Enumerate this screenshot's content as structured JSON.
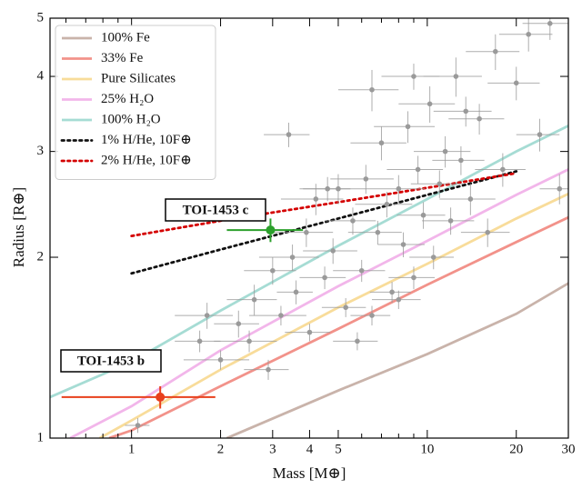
{
  "chart_data": {
    "type": "scatter",
    "xlabel": "Mass [M⊕]",
    "ylabel": "Radius [R⊕]",
    "xscale": "log",
    "yscale": "log",
    "xlim": [
      0.53,
      30
    ],
    "ylim": [
      1,
      5
    ],
    "xticks": [
      1,
      2,
      3,
      4,
      5,
      10,
      20,
      30
    ],
    "xminorticks": [
      0.6,
      0.7,
      0.8,
      0.9,
      6,
      7,
      8,
      9
    ],
    "yticks": [
      1,
      2,
      3,
      4,
      5
    ],
    "legend": "upper left",
    "series": [
      {
        "name": "100% Fe",
        "color": "#c9b3aa",
        "style": "solid",
        "x": [
          2.1,
          5,
          10,
          20,
          30
        ],
        "values": [
          1.0,
          1.2,
          1.38,
          1.61,
          1.81
        ]
      },
      {
        "name": "33% Fe",
        "color": "#f2928a",
        "style": "solid",
        "x": [
          0.84,
          1,
          2,
          5,
          10,
          20,
          30
        ],
        "values": [
          1.0,
          1.03,
          1.22,
          1.52,
          1.8,
          2.12,
          2.33
        ]
      },
      {
        "name": "Pure Silicates",
        "color": "#f8dc9a",
        "style": "solid",
        "x": [
          0.78,
          1,
          2,
          5,
          10,
          20,
          30
        ],
        "values": [
          1.0,
          1.07,
          1.3,
          1.65,
          1.95,
          2.32,
          2.55
        ]
      },
      {
        "name": "25% H₂O",
        "color": "#f2b6ea",
        "style": "solid",
        "x": [
          0.62,
          1,
          2,
          5,
          10,
          20,
          30
        ],
        "values": [
          1.0,
          1.13,
          1.4,
          1.79,
          2.13,
          2.54,
          2.8
        ]
      },
      {
        "name": "100% H₂O",
        "color": "#a6dcd4",
        "style": "solid",
        "x": [
          0.53,
          1,
          2,
          5,
          10,
          20,
          30
        ],
        "values": [
          1.17,
          1.34,
          1.63,
          2.09,
          2.5,
          3.0,
          3.31
        ]
      },
      {
        "name": "1% H/He, 10F⊕",
        "color": "#111111",
        "style": "dotted",
        "x": [
          1,
          2,
          5,
          10,
          20
        ],
        "values": [
          1.88,
          2.06,
          2.32,
          2.54,
          2.78
        ]
      },
      {
        "name": "2% H/He, 10F⊕",
        "color": "#d40000",
        "style": "dotted",
        "x": [
          1,
          2,
          5,
          10,
          20
        ],
        "values": [
          2.17,
          2.3,
          2.47,
          2.61,
          2.76
        ]
      }
    ],
    "points": {
      "color": "#9a9a9a",
      "x": [
        1.05,
        1.7,
        1.8,
        2.0,
        2.3,
        2.5,
        2.6,
        2.9,
        3.0,
        3.2,
        3.5,
        3.6,
        3.9,
        4.0,
        4.2,
        4.5,
        4.8,
        5.0,
        5.3,
        5.6,
        6.0,
        6.2,
        6.5,
        6.8,
        7.0,
        7.3,
        7.6,
        8.0,
        8.3,
        8.6,
        9.0,
        9.3,
        9.7,
        10.2,
        10.5,
        11.0,
        11.5,
        12.0,
        12.5,
        13.0,
        14.0,
        15.0,
        16.0,
        17.0,
        18.0,
        20.0,
        22.0,
        24.0,
        26.0,
        28.0,
        3.4,
        4.6,
        6.5,
        9.0,
        13.5,
        8.0,
        5.8
      ],
      "values": [
        1.05,
        1.45,
        1.6,
        1.35,
        1.55,
        1.45,
        1.7,
        1.3,
        1.9,
        1.6,
        2.0,
        1.75,
        2.2,
        1.5,
        2.5,
        1.85,
        2.05,
        2.6,
        1.65,
        2.3,
        1.9,
        2.7,
        1.6,
        2.2,
        3.1,
        2.45,
        1.75,
        2.6,
        2.1,
        3.3,
        1.85,
        2.8,
        2.35,
        3.6,
        2.0,
        2.65,
        3.0,
        2.3,
        4.0,
        2.9,
        2.5,
        3.4,
        2.2,
        4.4,
        2.8,
        3.9,
        4.7,
        3.2,
        4.9,
        2.6,
        3.2,
        2.6,
        3.8,
        4.0,
        3.5,
        1.7,
        1.45
      ],
      "xerr": [
        0.1,
        0.3,
        0.4,
        0.5,
        0.4,
        0.6,
        0.5,
        0.5,
        0.6,
        0.7,
        0.8,
        0.5,
        0.9,
        0.7,
        1.0,
        0.8,
        1.0,
        1.2,
        0.9,
        1.1,
        1.2,
        1.5,
        1.0,
        1.4,
        1.5,
        1.6,
        1.2,
        1.8,
        1.5,
        2.0,
        1.6,
        2.0,
        1.8,
        2.2,
        1.8,
        2.2,
        2.5,
        2.4,
        2.8,
        2.6,
        3.0,
        3.2,
        3.0,
        3.5,
        3.5,
        4.0,
        4.5,
        4.0,
        5.0,
        4.0,
        0.6,
        0.9,
        1.5,
        2.0,
        3.0,
        1.5,
        1.0
      ],
      "yerr": [
        0.03,
        0.06,
        0.08,
        0.05,
        0.08,
        0.06,
        0.1,
        0.05,
        0.1,
        0.06,
        0.1,
        0.08,
        0.12,
        0.05,
        0.15,
        0.08,
        0.1,
        0.15,
        0.06,
        0.12,
        0.08,
        0.15,
        0.06,
        0.1,
        0.2,
        0.12,
        0.07,
        0.14,
        0.1,
        0.2,
        0.08,
        0.15,
        0.12,
        0.25,
        0.09,
        0.14,
        0.18,
        0.12,
        0.3,
        0.16,
        0.15,
        0.2,
        0.12,
        0.3,
        0.18,
        0.25,
        0.3,
        0.2,
        0.3,
        0.15,
        0.15,
        0.12,
        0.3,
        0.2,
        0.2,
        0.06,
        0.05
      ]
    },
    "planets": [
      {
        "name": "TOI-1453 c",
        "color": "#2ca02c",
        "x": 2.95,
        "value": 2.22,
        "xerr": 0.85,
        "yerr": 0.1
      },
      {
        "name": "TOI-1453 b",
        "color": "#e8401c",
        "x": 1.25,
        "value": 1.17,
        "xerr": 0.67,
        "yerr": 0.05
      }
    ]
  }
}
